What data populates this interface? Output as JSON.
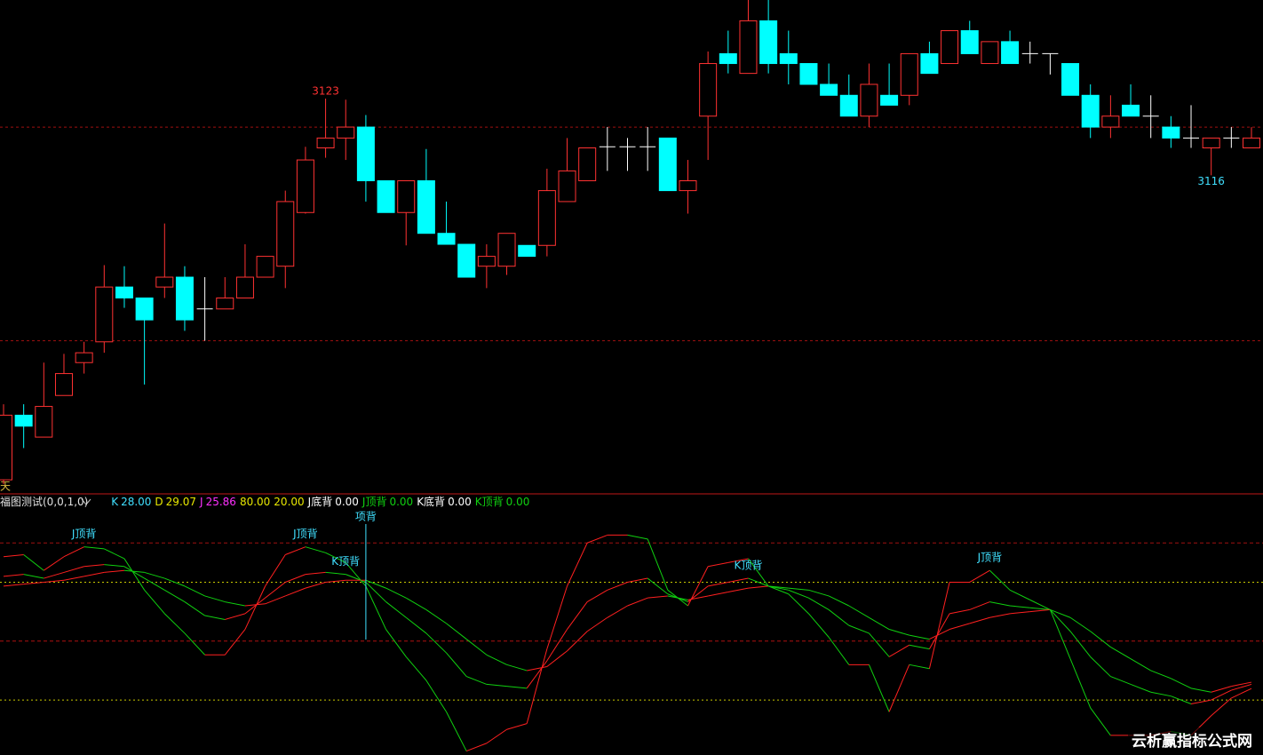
{
  "chart_data": {
    "type": "candlestick",
    "period_label": "天",
    "ylim": [
      3087,
      3132
    ],
    "up_color": "#ff3232",
    "down_color": "#00ffff",
    "flat_color": "#ffffff",
    "ref_lines": [
      3120.4,
      3100.9
    ],
    "ref_color": "#a01010",
    "open": [
      3088.2,
      3094.1,
      3092.1,
      3095.9,
      3098.9,
      3100.8,
      3105.8,
      3104.8,
      3105.8,
      3106.7,
      3103.8,
      3103.8,
      3104.8,
      3106.7,
      3107.7,
      3112.6,
      3118.5,
      3119.4,
      3120.4,
      3115.5,
      3112.6,
      3115.5,
      3110.7,
      3109.7,
      3107.7,
      3107.7,
      3109.6,
      3109.6,
      3113.6,
      3115.5,
      3118.6,
      3118.6,
      3118.6,
      3119.4,
      3114.6,
      3121.4,
      3127.1,
      3125.3,
      3130.1,
      3127.1,
      3126.2,
      3124.3,
      3123.3,
      3121.4,
      3123.3,
      3123.3,
      3127.1,
      3126.2,
      3129.2,
      3126.2,
      3128.2,
      3127.1,
      3127.1,
      3126.2,
      3123.3,
      3120.4,
      3122.4,
      3121.4,
      3120.4,
      3119.4,
      3118.5,
      3119.4,
      3118.5
    ],
    "high": [
      3095.1,
      3095.1,
      3098.9,
      3099.7,
      3100.8,
      3107.8,
      3107.7,
      3104.8,
      3111.6,
      3107.7,
      3106.7,
      3106.7,
      3109.7,
      3108.6,
      3114.6,
      3118.6,
      3123,
      3122.9,
      3121.5,
      3115.5,
      3115.5,
      3118.4,
      3113.6,
      3109.7,
      3109.7,
      3110.7,
      3109.6,
      3116.6,
      3119.4,
      3118.5,
      3120.4,
      3119.4,
      3120.4,
      3119.4,
      3117.4,
      3127.3,
      3129.2,
      3132,
      3132,
      3129.2,
      3126.2,
      3126.2,
      3125.2,
      3126.2,
      3126.2,
      3127.1,
      3128.2,
      3129.2,
      3130.1,
      3128.2,
      3129.2,
      3128.2,
      3127.1,
      3126.2,
      3124.3,
      3123.3,
      3124.3,
      3123.3,
      3121.4,
      3122.4,
      3119.4,
      3120.4,
      3120.4
    ],
    "low": [
      3087.8,
      3091.1,
      3092.1,
      3095.9,
      3097.9,
      3099.8,
      3103.9,
      3096.9,
      3104.8,
      3101.8,
      3100.9,
      3103.8,
      3104.8,
      3106.7,
      3105.7,
      3112.5,
      3117.6,
      3117.4,
      3113.6,
      3112.6,
      3109.6,
      3110.7,
      3109.7,
      3106.7,
      3105.7,
      3106.9,
      3108.6,
      3108.6,
      3113.6,
      3115.5,
      3116.4,
      3116.4,
      3116.4,
      3114.6,
      3112.5,
      3117.4,
      3125.3,
      3125.3,
      3125.3,
      3124.3,
      3124.3,
      3123.3,
      3121.4,
      3120.4,
      3122.4,
      3122.4,
      3125.3,
      3126.2,
      3127.1,
      3126.2,
      3126.2,
      3126.2,
      3125.2,
      3123.3,
      3119.4,
      3119.4,
      3121.4,
      3119.4,
      3118.5,
      3118.5,
      3116,
      3118.5,
      3118.5
    ],
    "close": [
      3094.1,
      3093.1,
      3094.9,
      3097.9,
      3099.8,
      3105.8,
      3104.8,
      3102.8,
      3106.7,
      3102.8,
      3103.8,
      3104.8,
      3106.7,
      3108.6,
      3113.6,
      3117.4,
      3119.4,
      3120.4,
      3115.5,
      3112.6,
      3115.5,
      3110.7,
      3109.7,
      3106.7,
      3108.6,
      3110.7,
      3108.6,
      3114.6,
      3116.4,
      3118.5,
      3118.6,
      3118.6,
      3118.6,
      3114.6,
      3115.5,
      3126.2,
      3126.2,
      3130.1,
      3126.2,
      3126.2,
      3124.3,
      3123.3,
      3121.4,
      3124.3,
      3122.4,
      3127.1,
      3125.3,
      3129.2,
      3127.1,
      3128.2,
      3126.2,
      3127.1,
      3127.1,
      3123.3,
      3120.4,
      3121.4,
      3121.4,
      3121.4,
      3119.4,
      3119.4,
      3119.4,
      3119.4,
      3119.4
    ],
    "annotations": [
      {
        "text": "3123",
        "value": 3123,
        "at": "high",
        "color": "#ff3232"
      },
      {
        "text": "3116",
        "value": 3116,
        "at": "low",
        "color": "#40e0ff"
      }
    ],
    "indicator": {
      "type": "line",
      "title": "福图测试(0,0,1,0)",
      "ylim": [
        -8,
        125
      ],
      "up_color": "#ff2020",
      "down_color": "#10d010",
      "levels": [
        {
          "value": 100,
          "color": "#a01010",
          "dash": "4 3"
        },
        {
          "value": 80,
          "color": "#c8c800",
          "dash": "2 3"
        },
        {
          "value": 50,
          "color": "#b01010",
          "dash": "4 3"
        },
        {
          "value": 20,
          "color": "#c8c800",
          "dash": "2 3"
        }
      ],
      "legend": [
        {
          "name": "K",
          "value": "28.00",
          "color": "#40e0ff"
        },
        {
          "name": "D",
          "value": "29.07",
          "color": "#e8e800"
        },
        {
          "name": "J",
          "value": "25.86",
          "color": "#ff30ff"
        },
        {
          "value": "80.00",
          "color": "#e8e800"
        },
        {
          "value": "20.00",
          "color": "#e8e800"
        },
        {
          "name": "J底背",
          "value": "0.00",
          "color": "#ffffff"
        },
        {
          "name": "J顶背",
          "value": "0.00",
          "color": "#10d010"
        },
        {
          "name": "K底背",
          "value": "0.00",
          "color": "#ffffff"
        },
        {
          "name": "K顶背",
          "value": "0.00",
          "color": "#10d010"
        }
      ],
      "series": [
        {
          "name": "K",
          "values": [
            83,
            84,
            82,
            85,
            88,
            89,
            88,
            82,
            76,
            70,
            63,
            61,
            64,
            72,
            80,
            84,
            85,
            84,
            80,
            70,
            62,
            54,
            44,
            32,
            28,
            27,
            26,
            40,
            56,
            70,
            76,
            80,
            82,
            74,
            70,
            78,
            80,
            82,
            78,
            76,
            72,
            66,
            58,
            54,
            42,
            48,
            46,
            64,
            66,
            70,
            68,
            67,
            66,
            55,
            42,
            32,
            28,
            24,
            22,
            18,
            20,
            25,
            28.0
          ]
        },
        {
          "name": "D",
          "values": [
            78,
            79,
            80,
            81,
            83,
            85,
            86,
            85,
            82,
            78,
            73,
            70,
            68,
            69,
            73,
            77,
            80,
            81,
            81,
            77,
            72,
            66,
            59,
            51,
            43,
            38,
            35,
            37,
            45,
            55,
            62,
            68,
            72,
            73,
            71,
            73,
            75,
            77,
            78,
            77,
            76,
            73,
            68,
            62,
            56,
            53,
            51,
            56,
            59,
            62,
            64,
            65,
            66,
            62,
            55,
            47,
            41,
            35,
            31,
            26,
            24,
            27,
            29.07
          ]
        },
        {
          "name": "J",
          "values": [
            93,
            94,
            86,
            93,
            98,
            97,
            92,
            76,
            64,
            54,
            43,
            43,
            56,
            78,
            94,
            98,
            95,
            90,
            78,
            56,
            42,
            30,
            14,
            -6,
            -2,
            5,
            8,
            46,
            78,
            100,
            104,
            104,
            102,
            76,
            68,
            88,
            90,
            92,
            78,
            74,
            64,
            52,
            38,
            38,
            14,
            38,
            36,
            80,
            80,
            86,
            76,
            71,
            66,
            41,
            16,
            2,
            2,
            2,
            4,
            2,
            12,
            21,
            25.86
          ]
        }
      ],
      "signals": [
        {
          "label": "J顶背",
          "index": 4,
          "series": 2
        },
        {
          "label": "J顶背",
          "index": 15,
          "series": 2
        },
        {
          "label": "K顶背",
          "index": 17,
          "series": 0
        },
        {
          "label": "项背",
          "index": 18,
          "series": 0,
          "vline": true
        },
        {
          "label": "K顶背",
          "index": 37,
          "series": 0
        },
        {
          "label": "J顶背",
          "index": 49,
          "series": 2
        }
      ],
      "signal_color": "#40e0ff"
    },
    "watermark": "云析赢指标公式网"
  }
}
